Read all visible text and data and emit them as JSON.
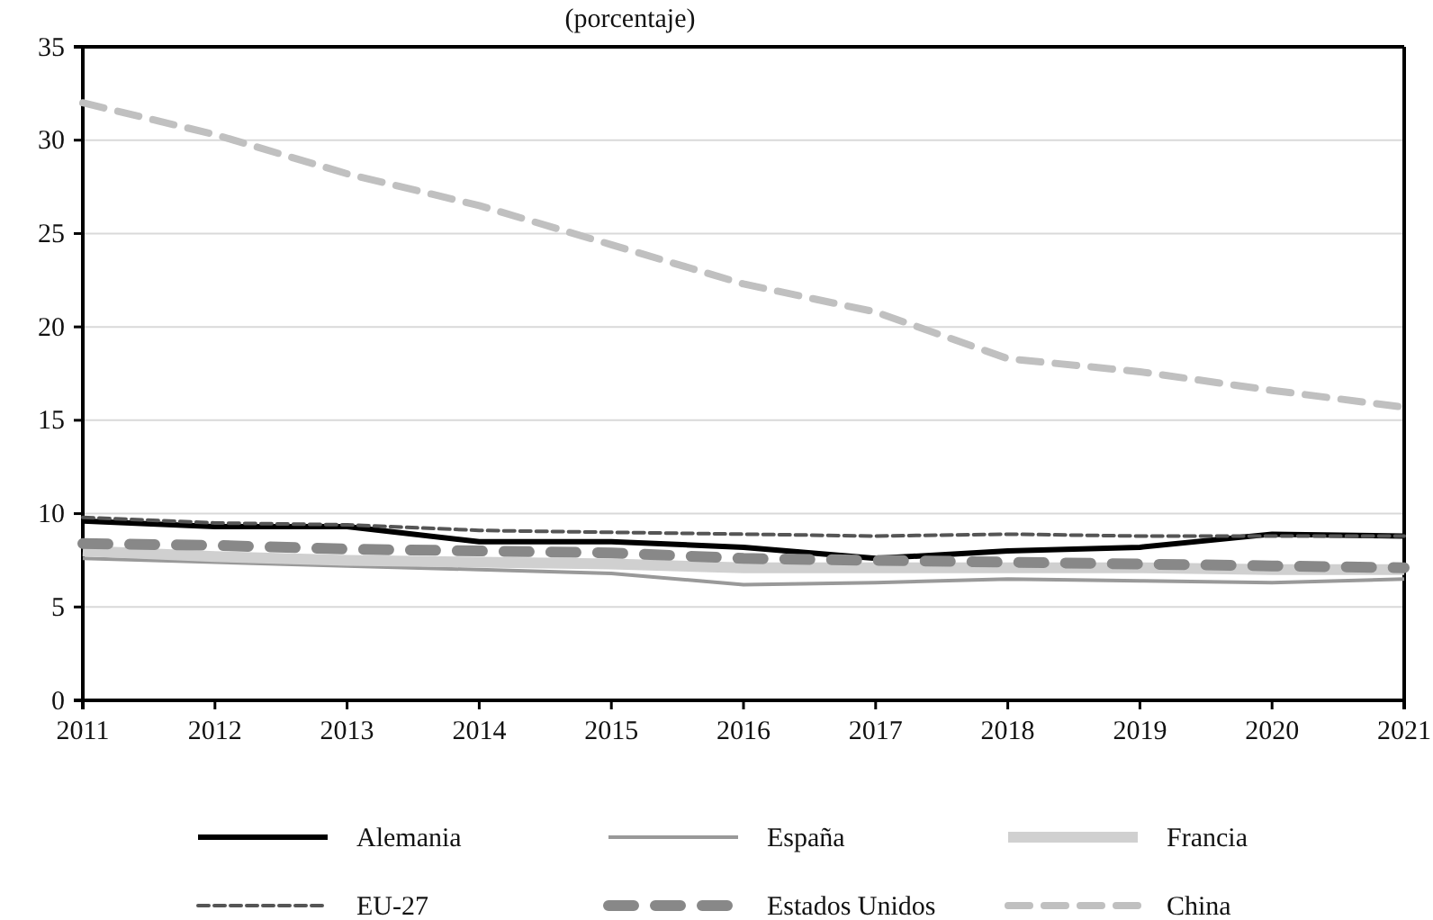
{
  "chart_data": {
    "type": "line",
    "title": "(porcentaje)",
    "x": [
      2011,
      2012,
      2013,
      2014,
      2015,
      2016,
      2017,
      2018,
      2019,
      2020,
      2021
    ],
    "xlim": [
      2011,
      2021
    ],
    "xticks": [
      2011,
      2012,
      2013,
      2014,
      2015,
      2016,
      2017,
      2018,
      2019,
      2020,
      2021
    ],
    "ylim": [
      0,
      35
    ],
    "yticks": [
      0,
      5,
      10,
      15,
      20,
      25,
      30,
      35
    ],
    "grid": "y",
    "legend": "bottom",
    "marker": "none",
    "series": [
      {
        "name": "Alemania",
        "color": "#000000",
        "line_style": "solid",
        "values": [
          9.6,
          9.3,
          9.3,
          8.5,
          8.5,
          8.2,
          7.6,
          8.0,
          8.2,
          8.9,
          8.8
        ]
      },
      {
        "name": "España",
        "color": "#999999",
        "line_style": "solid",
        "values": [
          7.6,
          7.4,
          7.2,
          7.0,
          6.8,
          6.2,
          6.3,
          6.5,
          6.4,
          6.3,
          6.5
        ]
      },
      {
        "name": "Francia",
        "color": "#d0d0d0",
        "line_style": "solid",
        "values": [
          8.0,
          7.7,
          7.5,
          7.4,
          7.3,
          7.1,
          7.1,
          7.1,
          7.1,
          7.0,
          7.0
        ]
      },
      {
        "name": "EU-27",
        "color": "#555555",
        "line_style": "dotted",
        "values": [
          9.8,
          9.5,
          9.4,
          9.1,
          9.0,
          8.9,
          8.8,
          8.9,
          8.8,
          8.8,
          8.8
        ]
      },
      {
        "name": "Estados Unidos",
        "color": "#888888",
        "line_style": "dashed",
        "values": [
          8.4,
          8.3,
          8.1,
          8.0,
          7.9,
          7.6,
          7.5,
          7.4,
          7.3,
          7.2,
          7.1
        ]
      },
      {
        "name": "China",
        "color": "#c0c0c0",
        "line_style": "dashed",
        "values": [
          32.0,
          30.3,
          28.2,
          26.5,
          24.4,
          22.3,
          20.8,
          18.3,
          17.6,
          16.6,
          15.7
        ]
      }
    ]
  }
}
